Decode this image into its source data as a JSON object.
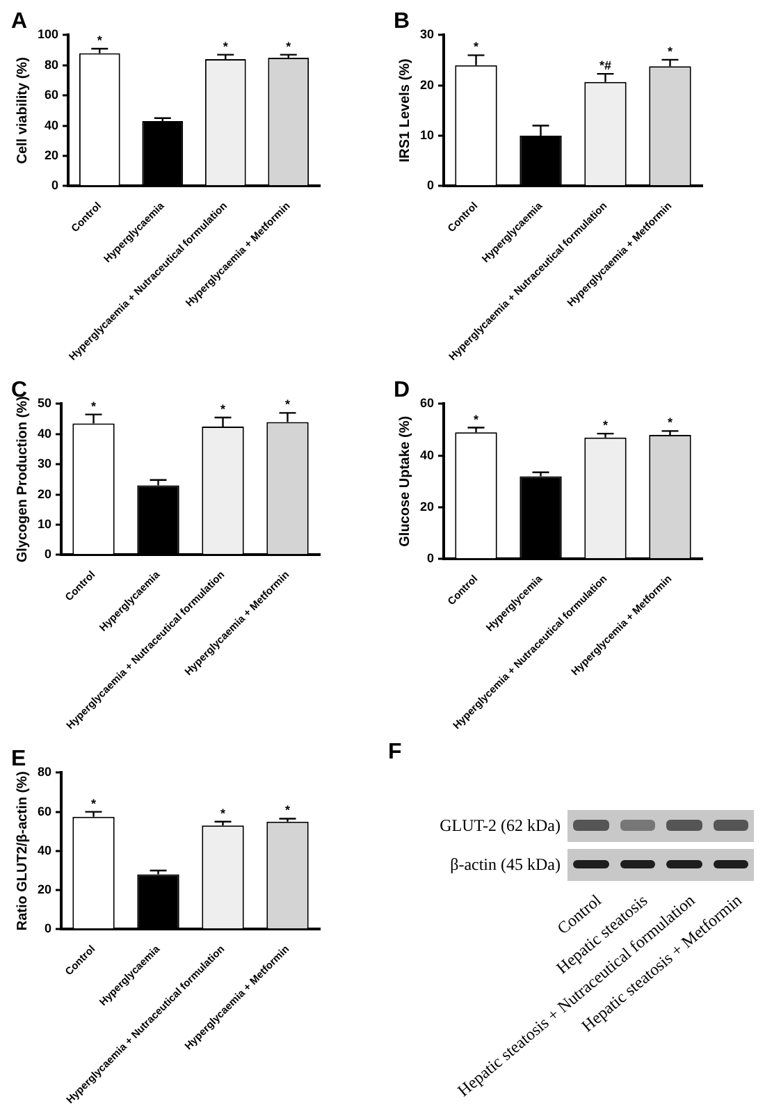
{
  "chart_data": [
    {
      "type": "bar",
      "title": "A",
      "ylabel": "Cell viability (%)",
      "categories": [
        "Control",
        "Hyperglycaemia",
        "Hyperglycaemia + Nutraceutical formulation",
        "Hyperglycaemia + Metformin"
      ],
      "values": [
        88,
        43,
        84,
        85
      ],
      "colors": [
        "#ffffff",
        "#000000",
        "#eeeeee",
        "#d4d4d4"
      ],
      "errors": [
        [
          88,
          91
        ],
        [
          43,
          45
        ],
        [
          84,
          87
        ],
        [
          85,
          87
        ]
      ],
      "ylim": [
        0,
        100
      ],
      "yticks": [
        0,
        20,
        40,
        60,
        80,
        100
      ],
      "annotations": [
        {
          "text": "*",
          "x": "Control",
          "y": 91
        },
        {
          "text": "*",
          "x": "Hyperglycaemia + Nutraceutical formulation",
          "y": 87
        },
        {
          "text": "*",
          "x": "Hyperglycaemia + Metformin",
          "y": 87
        }
      ]
    },
    {
      "type": "bar",
      "title": "B",
      "ylabel": "IRS1 Levels (%)",
      "categories": [
        "Control",
        "Hyperglycaemia",
        "Hyperglycaemia + Nutraceutical formulation",
        "Hyperglycaemia + Metformin"
      ],
      "values": [
        24,
        10,
        20.7,
        23.8
      ],
      "colors": [
        "#ffffff",
        "#000000",
        "#eeeeee",
        "#d4d4d4"
      ],
      "errors": [
        [
          24,
          26
        ],
        [
          10,
          12
        ],
        [
          20.7,
          22.3
        ],
        [
          23.8,
          25.1
        ]
      ],
      "ylim": [
        0,
        30
      ],
      "yticks": [
        0,
        10,
        20,
        30
      ],
      "annotations": [
        {
          "text": "*",
          "x": "Control",
          "y": 26
        },
        {
          "text": "*#",
          "x": "Hyperglycaemia + Nutraceutical formulation",
          "y": 22.3
        },
        {
          "text": "*",
          "x": "Hyperglycaemia + Metformin",
          "y": 25.1
        }
      ]
    },
    {
      "type": "bar",
      "title": "C",
      "ylabel": "Glycogen Production (%)",
      "categories": [
        "Control",
        "Hyperglycaemia",
        "Hyperglycaemia + Nutraceutical formulation",
        "Hyperglycaemia + Metformin"
      ],
      "values": [
        43.5,
        23,
        42.5,
        44
      ],
      "colors": [
        "#ffffff",
        "#000000",
        "#eeeeee",
        "#d4d4d4"
      ],
      "errors": [
        [
          43.5,
          46.5
        ],
        [
          23,
          24.8
        ],
        [
          42.5,
          45.5
        ],
        [
          44,
          47
        ]
      ],
      "ylim": [
        0,
        50
      ],
      "yticks": [
        0,
        10,
        20,
        30,
        40,
        50
      ],
      "annotations": [
        {
          "text": "*",
          "x": "Control",
          "y": 46.5
        },
        {
          "text": "*",
          "x": "Hyperglycaemia + Nutraceutical formulation",
          "y": 45.5
        },
        {
          "text": "*",
          "x": "Hyperglycaemia + Metformin",
          "y": 47
        }
      ]
    },
    {
      "type": "bar",
      "title": "D",
      "ylabel": "Glucose Uptake (%)",
      "categories": [
        "Control",
        "Hyperglycemia",
        "Hyperglycemia + Nutraceutical formulation",
        "Hyperglycemia + Metformin"
      ],
      "values": [
        49,
        32,
        47,
        48
      ],
      "colors": [
        "#ffffff",
        "#000000",
        "#eeeeee",
        "#d4d4d4"
      ],
      "errors": [
        [
          49,
          50.8
        ],
        [
          32,
          33.5
        ],
        [
          47,
          48.5
        ],
        [
          48,
          49.5
        ]
      ],
      "ylim": [
        0,
        60
      ],
      "yticks": [
        0,
        20,
        40,
        60
      ],
      "annotations": [
        {
          "text": "*",
          "x": "Control",
          "y": 50.8
        },
        {
          "text": "*",
          "x": "Hyperglycemia + Nutraceutical formulation",
          "y": 48.5
        },
        {
          "text": "*",
          "x": "Hyperglycemia + Metformin",
          "y": 49.5
        }
      ]
    },
    {
      "type": "bar",
      "title": "E",
      "ylabel": "Ratio GLUT2/β-actin (%)",
      "categories": [
        "Control",
        "Hyperglycaemia",
        "Hyperglycaemia + Nutraceutical formulation",
        "Hyperglycaemia + Metformin"
      ],
      "values": [
        57.5,
        28,
        53,
        55
      ],
      "colors": [
        "#ffffff",
        "#000000",
        "#eeeeee",
        "#d4d4d4"
      ],
      "errors": [
        [
          57.5,
          60
        ],
        [
          28,
          30
        ],
        [
          53,
          55
        ],
        [
          55,
          56.5
        ]
      ],
      "ylim": [
        0,
        80
      ],
      "yticks": [
        0,
        20,
        40,
        60,
        80
      ],
      "annotations": [
        {
          "text": "*",
          "x": "Control",
          "y": 60
        },
        {
          "text": "*",
          "x": "Hyperglycaemia + Nutraceutical formulation",
          "y": 55
        },
        {
          "text": "*",
          "x": "Hyperglycaemia + Metformin",
          "y": 56.5
        }
      ]
    },
    {
      "type": "other",
      "title": "F",
      "categories": [
        "Control",
        "Hepatic steatosis",
        "Hepatic steatosis + Nutraceutical formulation",
        "Hepatic steatosis + Metformin"
      ],
      "annotations": [
        "GLUT-2 (62 kDa)",
        "β-actin (45 kDa)"
      ]
    }
  ]
}
